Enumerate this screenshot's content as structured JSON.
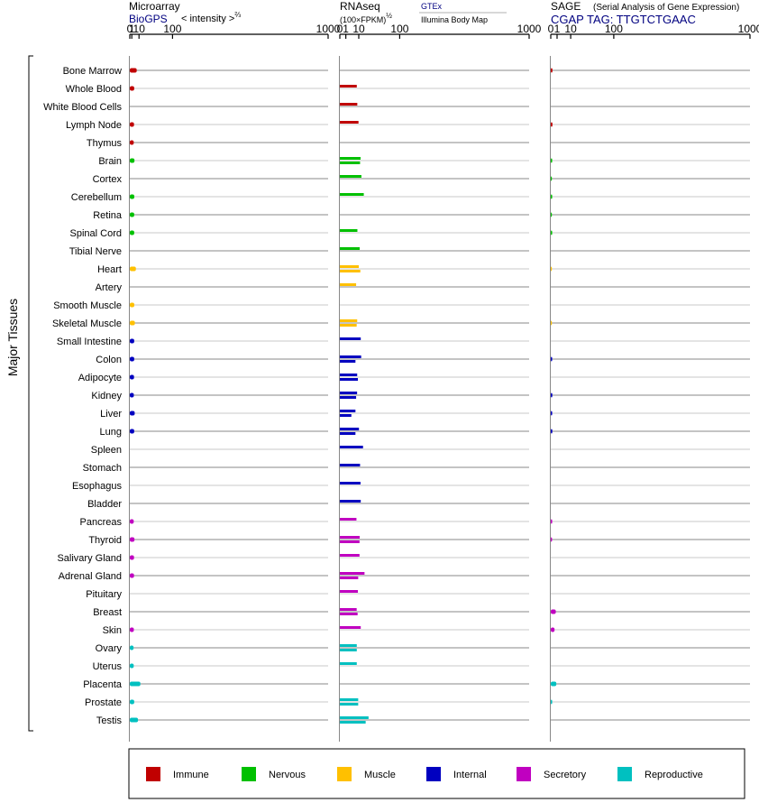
{
  "panels": {
    "microarray": {
      "title": "Microarray",
      "source": "BioGPS",
      "unit_prefix": "< intensity >",
      "unit_exp": "⅔"
    },
    "rnaseq": {
      "title": "RNAseq",
      "unit_prefix": "(100×FPKM)",
      "unit_exp": "½",
      "source_primary": "GTEx",
      "source_secondary": "Illumina Body Map"
    },
    "sage": {
      "title": "SAGE",
      "subtitle": "(Serial Analysis of Gene Expression)",
      "tag": "CGAP  TAG: TTGTCTGAAC"
    }
  },
  "axis_ticks": [
    "0",
    "1",
    "10",
    "100",
    "1000"
  ],
  "y_group_label": "Major Tissues",
  "legend": [
    {
      "key": "immune",
      "label": "Immune",
      "color": "#c00000"
    },
    {
      "key": "nervous",
      "label": "Nervous",
      "color": "#00c000"
    },
    {
      "key": "muscle",
      "label": "Muscle",
      "color": "#ffc000"
    },
    {
      "key": "internal",
      "label": "Internal",
      "color": "#0000c0"
    },
    {
      "key": "secretory",
      "label": "Secretory",
      "color": "#c000c0"
    },
    {
      "key": "reproductive",
      "label": "Reproductive",
      "color": "#00c0c0"
    }
  ],
  "chart_data": {
    "type": "bar",
    "orientation": "horizontal",
    "x_scale": "power (microarray ⅔, rnaseq ½, sage)",
    "xlim": [
      0,
      1000
    ],
    "categories": [
      "Bone Marrow",
      "Whole Blood",
      "White Blood Cells",
      "Lymph Node",
      "Thymus",
      "Brain",
      "Cortex",
      "Cerebellum",
      "Retina",
      "Spinal Cord",
      "Tibial Nerve",
      "Heart",
      "Artery",
      "Smooth Muscle",
      "Skeletal Muscle",
      "Small Intestine",
      "Colon",
      "Adipocyte",
      "Kidney",
      "Liver",
      "Lung",
      "Spleen",
      "Stomach",
      "Esophagus",
      "Bladder",
      "Pancreas",
      "Thyroid",
      "Salivary Gland",
      "Adrenal Gland",
      "Pituitary",
      "Breast",
      "Skin",
      "Ovary",
      "Uterus",
      "Placenta",
      "Prostate",
      "Testis"
    ],
    "groups": [
      "immune",
      "immune",
      "immune",
      "immune",
      "immune",
      "nervous",
      "nervous",
      "nervous",
      "nervous",
      "nervous",
      "nervous",
      "muscle",
      "muscle",
      "muscle",
      "muscle",
      "internal",
      "internal",
      "internal",
      "internal",
      "internal",
      "internal",
      "internal",
      "internal",
      "internal",
      "internal",
      "secretory",
      "secretory",
      "secretory",
      "secretory",
      "secretory",
      "secretory",
      "secretory",
      "reproductive",
      "reproductive",
      "reproductive",
      "reproductive",
      "reproductive"
    ],
    "series": [
      {
        "name": "Microarray",
        "values": [
          6.5,
          3.3,
          null,
          3.1,
          2.8,
          3.6,
          null,
          3.4,
          3.3,
          3.3,
          null,
          5.4,
          null,
          3.4,
          4.1,
          3.3,
          3.3,
          3.1,
          2.9,
          3.9,
          3.3,
          null,
          null,
          null,
          null,
          2.8,
          3.6,
          3.1,
          3.1,
          null,
          null,
          2.9,
          2.6,
          2.8,
          12.3,
          3.3,
          8.4
        ]
      },
      {
        "name": "GTEx",
        "values": [
          null,
          8,
          8.5,
          9.7,
          null,
          12,
          13,
          16,
          null,
          8.6,
          11,
          10,
          7.4,
          null,
          8.4,
          12.2,
          12.7,
          8.4,
          8.3,
          6.8,
          10.2,
          15,
          11.4,
          11.9,
          12.2,
          7.7,
          11,
          10.8,
          17,
          9.1,
          7.9,
          12.2,
          8,
          8,
          null,
          9.4,
          23
        ]
      },
      {
        "name": "Illumina Body Map",
        "values": [
          null,
          null,
          null,
          null,
          null,
          11.4,
          null,
          null,
          null,
          null,
          null,
          11.7,
          null,
          null,
          7.9,
          null,
          6.8,
          9.1,
          7.4,
          3.7,
          6.8,
          null,
          null,
          null,
          null,
          null,
          10.8,
          null,
          9.4,
          null,
          8.8,
          null,
          8,
          null,
          null,
          9.4,
          18.6
        ]
      },
      {
        "name": "SAGE",
        "values": [
          0.07,
          null,
          null,
          0.07,
          null,
          0.05,
          0.03,
          0.05,
          0.03,
          0.05,
          null,
          0.02,
          null,
          null,
          0.03,
          null,
          0.05,
          null,
          0.06,
          0.05,
          0.06,
          null,
          null,
          null,
          null,
          0.05,
          0.04,
          null,
          null,
          null,
          0.64,
          0.36,
          null,
          null,
          0.78,
          0.05,
          null
        ]
      }
    ]
  }
}
